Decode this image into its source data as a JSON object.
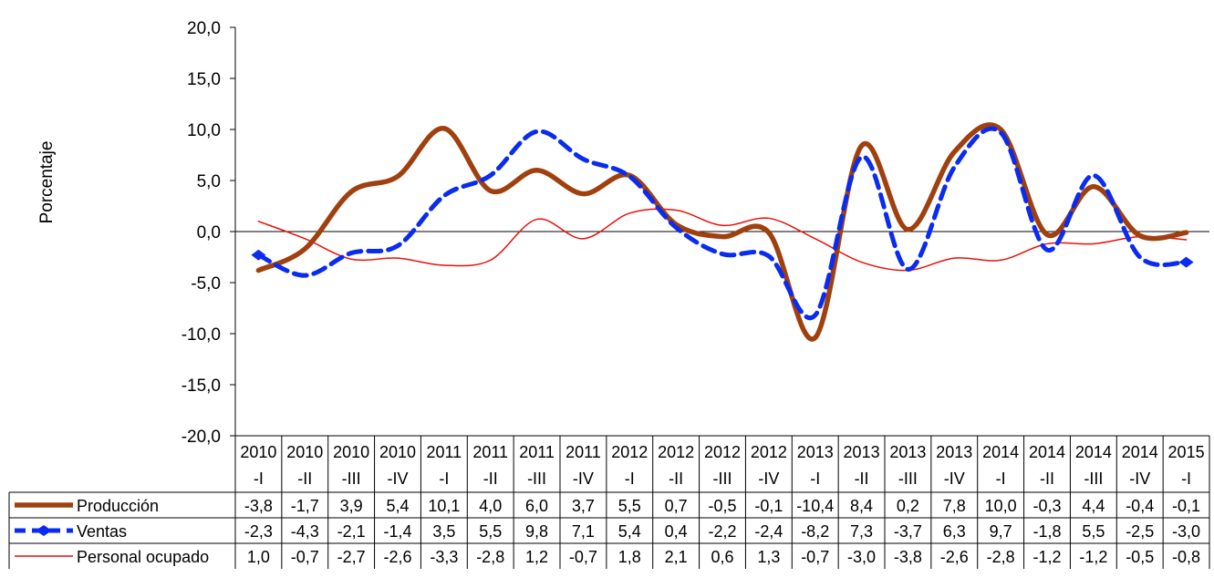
{
  "chart_data": {
    "type": "line",
    "ylabel": "Porcentaje",
    "ylim": [
      -20,
      20
    ],
    "ytick_labels": [
      "20,0",
      "15,0",
      "10,0",
      "5,0",
      "0,0",
      "-5,0",
      "-10,0",
      "-15,0",
      "-20,0"
    ],
    "categories": [
      [
        "2010",
        "-I"
      ],
      [
        "2010",
        "-II"
      ],
      [
        "2010",
        "-III"
      ],
      [
        "2010",
        "-IV"
      ],
      [
        "2011",
        "-I"
      ],
      [
        "2011",
        "-II"
      ],
      [
        "2011",
        "-III"
      ],
      [
        "2011",
        "-IV"
      ],
      [
        "2012",
        "-I"
      ],
      [
        "2012",
        "-II"
      ],
      [
        "2012",
        "-III"
      ],
      [
        "2012",
        "-IV"
      ],
      [
        "2013",
        "-I"
      ],
      [
        "2013",
        "-II"
      ],
      [
        "2013",
        "-III"
      ],
      [
        "2013",
        "-IV"
      ],
      [
        "2014",
        "-I"
      ],
      [
        "2014",
        "-II"
      ],
      [
        "2014",
        "-III"
      ],
      [
        "2014",
        "-IV"
      ],
      [
        "2015",
        "-I"
      ]
    ],
    "series": [
      {
        "name": "Producción",
        "color": "#A0400F",
        "style": "solid-thick",
        "values": [
          -3.8,
          -1.7,
          3.9,
          5.4,
          10.1,
          4.0,
          6.0,
          3.7,
          5.5,
          0.7,
          -0.5,
          -0.1,
          -10.4,
          8.4,
          0.2,
          7.8,
          10.0,
          -0.3,
          4.4,
          -0.4,
          -0.1
        ],
        "labels": [
          "-3,8",
          "-1,7",
          "3,9",
          "5,4",
          "10,1",
          "4,0",
          "6,0",
          "3,7",
          "5,5",
          "0,7",
          "-0,5",
          "-0,1",
          "-10,4",
          "8,4",
          "0,2",
          "7,8",
          "10,0",
          "-0,3",
          "4,4",
          "-0,4",
          "-0,1"
        ]
      },
      {
        "name": "Ventas",
        "color": "#0A2BF0",
        "style": "dashed-diamond",
        "values": [
          -2.3,
          -4.3,
          -2.1,
          -1.4,
          3.5,
          5.5,
          9.8,
          7.1,
          5.4,
          0.4,
          -2.2,
          -2.4,
          -8.2,
          7.3,
          -3.7,
          6.3,
          9.7,
          -1.8,
          5.5,
          -2.5,
          -3.0
        ],
        "labels": [
          "-2,3",
          "-4,3",
          "-2,1",
          "-1,4",
          "3,5",
          "5,5",
          "9,8",
          "7,1",
          "5,4",
          "0,4",
          "-2,2",
          "-2,4",
          "-8,2",
          "7,3",
          "-3,7",
          "6,3",
          "9,7",
          "-1,8",
          "5,5",
          "-2,5",
          "-3,0"
        ]
      },
      {
        "name": "Personal ocupado",
        "color": "#E8100A",
        "style": "solid-thin",
        "values": [
          1.0,
          -0.7,
          -2.7,
          -2.6,
          -3.3,
          -2.8,
          1.2,
          -0.7,
          1.8,
          2.1,
          0.6,
          1.3,
          -0.7,
          -3.0,
          -3.8,
          -2.6,
          -2.8,
          -1.2,
          -1.2,
          -0.5,
          -0.8
        ],
        "labels": [
          "1,0",
          "-0,7",
          "-2,7",
          "-2,6",
          "-3,3",
          "-2,8",
          "1,2",
          "-0,7",
          "1,8",
          "2,1",
          "0,6",
          "1,3",
          "-0,7",
          "-3,0",
          "-3,8",
          "-2,6",
          "-2,8",
          "-1,2",
          "-1,2",
          "-0,5",
          "-0,8"
        ]
      }
    ],
    "grid": false,
    "legend": "data-table"
  }
}
